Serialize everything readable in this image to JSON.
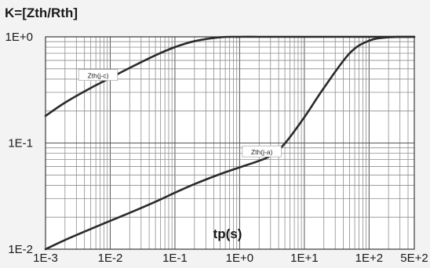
{
  "chart_data": {
    "type": "line",
    "title": "K=[Zth/Rth]",
    "xlabel": "tp(s)",
    "ylabel": "",
    "xscale": "log",
    "yscale": "log",
    "xlim": [
      0.001,
      500
    ],
    "ylim": [
      0.01,
      1
    ],
    "grid": true,
    "x_tick_labels": [
      "1E-3",
      "1E-2",
      "1E-1",
      "1E+0",
      "1E+1",
      "1E+2",
      "5E+2"
    ],
    "y_tick_labels": [
      "1E-2",
      "1E-1",
      "1E+0"
    ],
    "series": [
      {
        "name": "Zth(j-c)",
        "x": [
          0.001,
          0.002,
          0.005,
          0.01,
          0.02,
          0.05,
          0.1,
          0.2,
          0.5,
          1,
          2,
          5,
          10,
          100,
          500
        ],
        "y": [
          0.18,
          0.24,
          0.33,
          0.41,
          0.51,
          0.67,
          0.8,
          0.91,
          0.99,
          1.0,
          1.0,
          1.0,
          1.0,
          1.0,
          1.0
        ]
      },
      {
        "name": "Zth(j-a)",
        "x": [
          0.001,
          0.002,
          0.005,
          0.01,
          0.02,
          0.05,
          0.1,
          0.2,
          0.5,
          1,
          2,
          3,
          5,
          10,
          20,
          50,
          100,
          200,
          500
        ],
        "y": [
          0.01,
          0.0122,
          0.0155,
          0.0185,
          0.022,
          0.028,
          0.034,
          0.041,
          0.051,
          0.059,
          0.068,
          0.076,
          0.099,
          0.175,
          0.33,
          0.7,
          0.92,
          0.99,
          1.0
        ]
      }
    ]
  }
}
